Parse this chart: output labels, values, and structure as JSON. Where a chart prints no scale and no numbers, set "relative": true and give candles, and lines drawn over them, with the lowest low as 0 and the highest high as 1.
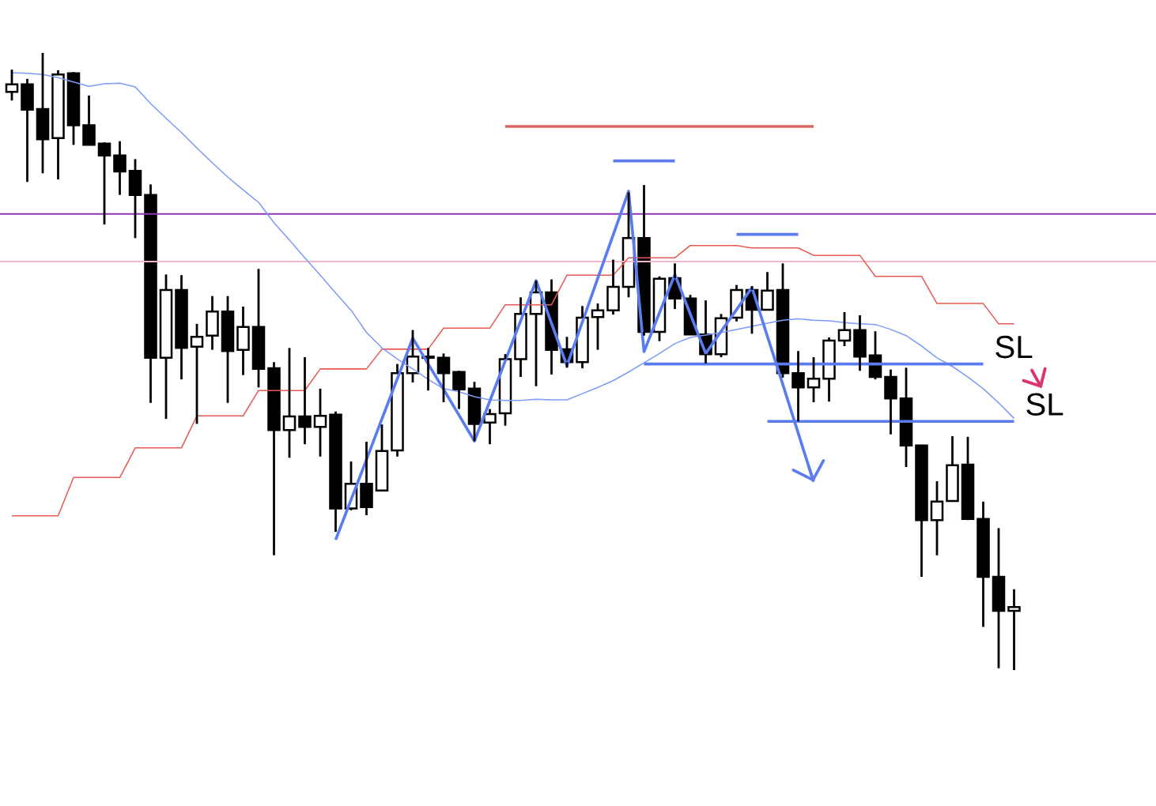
{
  "chart_data": {
    "type": "candlestick",
    "relative": true,
    "categories": [
      null,
      null,
      null,
      null,
      null,
      null,
      null,
      null,
      null,
      null,
      null,
      null,
      null,
      null,
      null,
      null,
      null,
      null,
      null,
      null,
      null,
      null,
      null,
      null,
      null,
      null,
      null,
      null,
      null,
      null,
      null,
      null,
      null,
      null,
      null,
      null,
      null,
      null,
      null,
      null,
      null,
      null,
      null,
      null,
      null,
      null,
      null,
      null,
      null,
      null,
      null,
      null,
      null,
      null,
      null,
      null,
      null,
      null,
      null,
      null,
      null,
      null,
      null,
      null,
      null,
      null
    ],
    "ohlc": [
      [
        0.937,
        0.973,
        0.923,
        0.949
      ],
      [
        0.949,
        0.958,
        0.791,
        0.908
      ],
      [
        0.909,
        1.0,
        0.805,
        0.86
      ],
      [
        0.862,
        0.972,
        0.795,
        0.965
      ],
      [
        0.967,
        0.969,
        0.851,
        0.883
      ],
      [
        0.883,
        0.931,
        0.851,
        0.851
      ],
      [
        0.853,
        0.855,
        0.722,
        0.834
      ],
      [
        0.834,
        0.857,
        0.77,
        0.808
      ],
      [
        0.809,
        0.828,
        0.7,
        0.77
      ],
      [
        0.77,
        0.787,
        0.433,
        0.506
      ],
      [
        0.506,
        0.641,
        0.407,
        0.616
      ],
      [
        0.616,
        0.64,
        0.471,
        0.522
      ],
      [
        0.524,
        0.561,
        0.399,
        0.54
      ],
      [
        0.542,
        0.606,
        0.519,
        0.581
      ],
      [
        0.581,
        0.606,
        0.433,
        0.517
      ],
      [
        0.519,
        0.589,
        0.478,
        0.556
      ],
      [
        0.556,
        0.65,
        0.458,
        0.488
      ],
      [
        0.489,
        0.499,
        0.186,
        0.389
      ],
      [
        0.389,
        0.522,
        0.344,
        0.411
      ],
      [
        0.411,
        0.507,
        0.366,
        0.394
      ],
      [
        0.394,
        0.456,
        0.346,
        0.412
      ],
      [
        0.414,
        0.419,
        0.224,
        0.262
      ],
      [
        0.262,
        0.338,
        0.259,
        0.302
      ],
      [
        0.302,
        0.37,
        0.251,
        0.264
      ],
      [
        0.291,
        0.398,
        0.291,
        0.355
      ],
      [
        0.356,
        0.496,
        0.346,
        0.481
      ],
      [
        0.481,
        0.551,
        0.466,
        0.508
      ],
      [
        0.508,
        0.522,
        0.453,
        0.506
      ],
      [
        0.506,
        0.513,
        0.434,
        0.481
      ],
      [
        0.483,
        0.485,
        0.423,
        0.455
      ],
      [
        0.456,
        0.467,
        0.371,
        0.399
      ],
      [
        0.401,
        0.423,
        0.366,
        0.415
      ],
      [
        0.416,
        0.512,
        0.396,
        0.504
      ],
      [
        0.504,
        0.604,
        0.475,
        0.577
      ],
      [
        0.577,
        0.631,
        0.46,
        0.612
      ],
      [
        0.612,
        0.633,
        0.479,
        0.519
      ],
      [
        0.52,
        0.54,
        0.49,
        0.499
      ],
      [
        0.499,
        0.59,
        0.489,
        0.571
      ],
      [
        0.572,
        0.594,
        0.519,
        0.583
      ],
      [
        0.583,
        0.665,
        0.576,
        0.621
      ],
      [
        0.621,
        0.774,
        0.604,
        0.7
      ],
      [
        0.7,
        0.786,
        0.542,
        0.548
      ],
      [
        0.548,
        0.638,
        0.533,
        0.634
      ],
      [
        0.635,
        0.659,
        0.585,
        0.602
      ],
      [
        0.602,
        0.608,
        0.544,
        0.544
      ],
      [
        0.544,
        0.599,
        0.497,
        0.512
      ],
      [
        0.512,
        0.577,
        0.507,
        0.57
      ],
      [
        0.571,
        0.624,
        0.565,
        0.616
      ],
      [
        0.616,
        0.622,
        0.545,
        0.584
      ],
      [
        0.584,
        0.645,
        0.583,
        0.615
      ],
      [
        0.616,
        0.659,
        0.474,
        0.481
      ],
      [
        0.481,
        0.517,
        0.403,
        0.458
      ],
      [
        0.458,
        0.507,
        0.434,
        0.472
      ],
      [
        0.472,
        0.539,
        0.435,
        0.534
      ],
      [
        0.534,
        0.58,
        0.525,
        0.551
      ],
      [
        0.551,
        0.575,
        0.485,
        0.508
      ],
      [
        0.51,
        0.549,
        0.471,
        0.475
      ],
      [
        0.475,
        0.487,
        0.382,
        0.44
      ],
      [
        0.44,
        0.49,
        0.329,
        0.364
      ],
      [
        0.364,
        0.364,
        0.151,
        0.243
      ],
      [
        0.243,
        0.306,
        0.186,
        0.273
      ],
      [
        0.274,
        0.379,
        0.274,
        0.332
      ],
      [
        0.333,
        0.378,
        0.243,
        0.245
      ],
      [
        0.245,
        0.273,
        0.07,
        0.151
      ],
      [
        0.151,
        0.23,
        0.003,
        0.096
      ],
      [
        0.096,
        0.131,
        0.0,
        0.102
      ]
    ],
    "series": [
      {
        "type": "line",
        "color": "#e8594f",
        "values": [
          0.25,
          0.25,
          0.25,
          0.25,
          0.312,
          0.312,
          0.312,
          0.312,
          0.36,
          0.36,
          0.36,
          0.36,
          0.412,
          0.412,
          0.412,
          0.412,
          0.453,
          0.453,
          0.453,
          0.453,
          0.488,
          0.488,
          0.488,
          0.488,
          0.52,
          0.52,
          0.52,
          0.52,
          0.554,
          0.554,
          0.554,
          0.554,
          0.592,
          0.592,
          0.592,
          0.592,
          0.64,
          0.64,
          0.64,
          0.64,
          0.668,
          0.668,
          0.668,
          0.668,
          0.688,
          0.688,
          0.688,
          0.688,
          0.684,
          0.684,
          0.684,
          0.684,
          0.672,
          0.672,
          0.672,
          0.672,
          0.638,
          0.638,
          0.638,
          0.638,
          0.594,
          0.594,
          0.594,
          0.594,
          0.561,
          0.561
        ]
      },
      {
        "type": "line",
        "color": "#7e9bf7",
        "values": [
          0.968,
          0.967,
          0.965,
          0.96,
          0.953,
          0.946,
          0.95,
          0.951,
          0.945,
          0.918,
          0.894,
          0.871,
          0.846,
          0.822,
          0.799,
          0.778,
          0.758,
          0.725,
          0.697,
          0.668,
          0.64,
          0.611,
          0.583,
          0.547,
          0.522,
          0.504,
          0.488,
          0.471,
          0.456,
          0.451,
          0.443,
          0.438,
          0.437,
          0.437,
          0.439,
          0.438,
          0.438,
          0.448,
          0.458,
          0.469,
          0.483,
          0.498,
          0.513,
          0.529,
          0.539,
          0.543,
          0.547,
          0.552,
          0.557,
          0.562,
          0.567,
          0.569,
          0.567,
          0.566,
          0.563,
          0.561,
          0.56,
          0.552,
          0.542,
          0.525,
          0.506,
          0.492,
          0.475,
          0.456,
          0.433,
          0.408
        ]
      },
      {
        "type": "line",
        "color": "#e06464",
        "values": [
          null,
          null,
          null,
          null,
          null,
          null,
          null,
          null,
          null,
          null,
          null,
          null,
          null,
          null,
          null,
          null,
          null,
          null,
          null,
          null,
          null,
          null,
          null,
          null,
          null,
          null,
          null,
          null,
          null,
          null,
          null,
          null,
          0.881,
          0.881,
          0.881,
          0.881,
          0.881,
          0.881,
          0.881,
          0.881,
          0.881,
          0.881,
          0.881,
          0.881,
          0.881,
          0.881,
          0.881,
          0.881,
          0.881,
          0.881,
          0.881,
          0.881,
          0.881,
          null,
          null,
          null,
          null,
          null,
          null,
          null,
          null,
          null,
          null,
          null,
          null,
          null
        ]
      },
      {
        "type": "line",
        "color": "#5b7cf0",
        "values": [
          null,
          null,
          null,
          null,
          null,
          null,
          null,
          null,
          null,
          null,
          null,
          null,
          null,
          null,
          null,
          null,
          null,
          null,
          null,
          null,
          null,
          null,
          null,
          null,
          null,
          null,
          null,
          null,
          null,
          null,
          null,
          null,
          null,
          null,
          null,
          null,
          null,
          null,
          null,
          0.825,
          0.825,
          0.825,
          0.825,
          0.825,
          null,
          null,
          null,
          null,
          null,
          null,
          null,
          null,
          null,
          null,
          null,
          null,
          null,
          null,
          null,
          null,
          null,
          null,
          null,
          null,
          null,
          null
        ]
      },
      {
        "type": "line",
        "color": "#5b7cf0",
        "values": [
          null,
          null,
          null,
          null,
          null,
          null,
          null,
          null,
          null,
          null,
          null,
          null,
          null,
          null,
          null,
          null,
          null,
          null,
          null,
          null,
          null,
          null,
          null,
          null,
          null,
          null,
          null,
          null,
          null,
          null,
          null,
          null,
          null,
          null,
          null,
          null,
          null,
          null,
          null,
          null,
          null,
          null,
          null,
          null,
          null,
          null,
          null,
          0.706,
          0.706,
          0.706,
          0.706,
          0.706,
          null,
          null,
          null,
          null,
          null,
          null,
          null,
          null,
          null,
          null,
          null,
          null,
          null,
          null
        ]
      },
      {
        "type": "line",
        "color": "#5b7cf0",
        "values": [
          null,
          null,
          null,
          null,
          null,
          null,
          null,
          null,
          null,
          null,
          null,
          null,
          null,
          null,
          null,
          null,
          null,
          null,
          null,
          null,
          null,
          0.211,
          0.276,
          0.341,
          0.407,
          0.472,
          0.538,
          0.496,
          0.455,
          0.413,
          0.371,
          0.436,
          0.501,
          0.566,
          0.631,
          0.562,
          0.493,
          0.564,
          0.635,
          0.705,
          0.776,
          0.516,
          0.579,
          0.641,
          0.577,
          0.513,
          0.549,
          0.584,
          0.62,
          0.541,
          0.463,
          0.384,
          0.305,
          null,
          null,
          null,
          null,
          null,
          null,
          null,
          null,
          null,
          null,
          null,
          null,
          null
        ]
      },
      {
        "type": "line",
        "name": "SL",
        "color": "#5b7cf0",
        "values": [
          null,
          null,
          null,
          null,
          null,
          null,
          null,
          null,
          null,
          null,
          null,
          null,
          null,
          null,
          null,
          null,
          null,
          null,
          null,
          null,
          null,
          null,
          null,
          null,
          null,
          null,
          null,
          null,
          null,
          null,
          null,
          null,
          null,
          null,
          null,
          null,
          null,
          null,
          null,
          null,
          null,
          0.496,
          0.496,
          0.496,
          0.496,
          0.496,
          0.496,
          0.496,
          0.496,
          0.496,
          0.496,
          0.496,
          0.496,
          0.496,
          0.496,
          0.496,
          0.496,
          0.496,
          0.496,
          0.496,
          0.496,
          0.496,
          0.496,
          0.496,
          null,
          null
        ]
      },
      {
        "type": "line",
        "name": "SL",
        "color": "#5b7cf0",
        "values": [
          null,
          null,
          null,
          null,
          null,
          null,
          null,
          null,
          null,
          null,
          null,
          null,
          null,
          null,
          null,
          null,
          null,
          null,
          null,
          null,
          null,
          null,
          null,
          null,
          null,
          null,
          null,
          null,
          null,
          null,
          null,
          null,
          null,
          null,
          null,
          null,
          null,
          null,
          null,
          null,
          null,
          null,
          null,
          null,
          null,
          null,
          null,
          null,
          null,
          0.403,
          0.403,
          0.403,
          0.403,
          0.403,
          0.403,
          0.403,
          0.403,
          0.403,
          0.403,
          0.403,
          0.403,
          0.403,
          0.403,
          0.403,
          0.403,
          0.403
        ]
      }
    ],
    "ref_lines": [
      {
        "axis": "y",
        "value": 0.739,
        "color": "#8e35b8"
      },
      {
        "axis": "y",
        "value": 0.662,
        "color": "#f2b8c9"
      }
    ]
  }
}
